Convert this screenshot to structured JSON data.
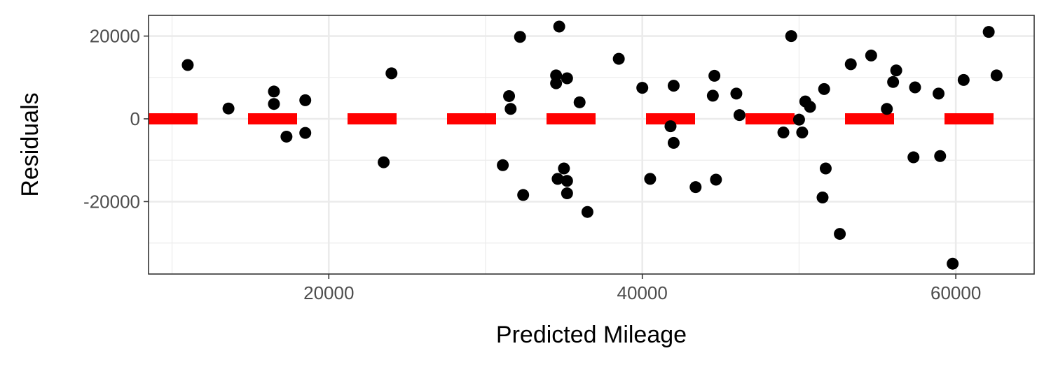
{
  "chart_data": {
    "type": "scatter",
    "title": "",
    "xlabel": "Predicted Mileage",
    "ylabel": "Residuals",
    "xlim": [
      8500,
      65000
    ],
    "ylim": [
      -37500,
      25000
    ],
    "x_ticks": [
      20000,
      40000,
      60000
    ],
    "y_ticks": [
      -20000,
      0,
      20000
    ],
    "x_tick_labels": [
      "20000",
      "40000",
      "60000"
    ],
    "y_tick_labels": [
      "-20000",
      "0",
      "20000"
    ],
    "grid": true,
    "legend": "none",
    "point_color": "#000000",
    "reference_line": {
      "y": 0,
      "style": "dashed",
      "color": "#ff0000"
    },
    "points": [
      {
        "x": 11000,
        "y": 13000
      },
      {
        "x": 13600,
        "y": 2500
      },
      {
        "x": 16500,
        "y": 6600
      },
      {
        "x": 16500,
        "y": 3600
      },
      {
        "x": 17300,
        "y": -4300
      },
      {
        "x": 18500,
        "y": 4500
      },
      {
        "x": 18500,
        "y": -3400
      },
      {
        "x": 23500,
        "y": -10500
      },
      {
        "x": 24000,
        "y": 11000
      },
      {
        "x": 31100,
        "y": -11200
      },
      {
        "x": 31500,
        "y": 5500
      },
      {
        "x": 31600,
        "y": 2400
      },
      {
        "x": 32200,
        "y": 19800
      },
      {
        "x": 32400,
        "y": -18400
      },
      {
        "x": 34500,
        "y": 10500
      },
      {
        "x": 34500,
        "y": 8600
      },
      {
        "x": 34600,
        "y": -14500
      },
      {
        "x": 34700,
        "y": 22300
      },
      {
        "x": 35000,
        "y": -12000
      },
      {
        "x": 35200,
        "y": -15000
      },
      {
        "x": 35200,
        "y": -18000
      },
      {
        "x": 35200,
        "y": 9800
      },
      {
        "x": 36000,
        "y": 4000
      },
      {
        "x": 36500,
        "y": -22500
      },
      {
        "x": 38500,
        "y": 14500
      },
      {
        "x": 40000,
        "y": 7500
      },
      {
        "x": 40500,
        "y": -14500
      },
      {
        "x": 41800,
        "y": -1800
      },
      {
        "x": 42000,
        "y": -5800
      },
      {
        "x": 42000,
        "y": 8000
      },
      {
        "x": 43400,
        "y": -16500
      },
      {
        "x": 44500,
        "y": 5600
      },
      {
        "x": 44600,
        "y": 10400
      },
      {
        "x": 44700,
        "y": -14700
      },
      {
        "x": 46000,
        "y": 6100
      },
      {
        "x": 46200,
        "y": 900
      },
      {
        "x": 49000,
        "y": -3300
      },
      {
        "x": 49500,
        "y": 20000
      },
      {
        "x": 50000,
        "y": -200
      },
      {
        "x": 50200,
        "y": -3300
      },
      {
        "x": 50400,
        "y": 4200
      },
      {
        "x": 50700,
        "y": 2900
      },
      {
        "x": 51600,
        "y": 7200
      },
      {
        "x": 51500,
        "y": -19000
      },
      {
        "x": 51700,
        "y": -12000
      },
      {
        "x": 52600,
        "y": -27800
      },
      {
        "x": 53300,
        "y": 13200
      },
      {
        "x": 54600,
        "y": 15300
      },
      {
        "x": 55600,
        "y": 2400
      },
      {
        "x": 56000,
        "y": 8900
      },
      {
        "x": 56200,
        "y": 11700
      },
      {
        "x": 57300,
        "y": -9300
      },
      {
        "x": 57400,
        "y": 7600
      },
      {
        "x": 58900,
        "y": 6100
      },
      {
        "x": 59000,
        "y": -9000
      },
      {
        "x": 59800,
        "y": -35000
      },
      {
        "x": 60500,
        "y": 9400
      },
      {
        "x": 62100,
        "y": 21000
      },
      {
        "x": 62600,
        "y": 10500
      }
    ]
  }
}
